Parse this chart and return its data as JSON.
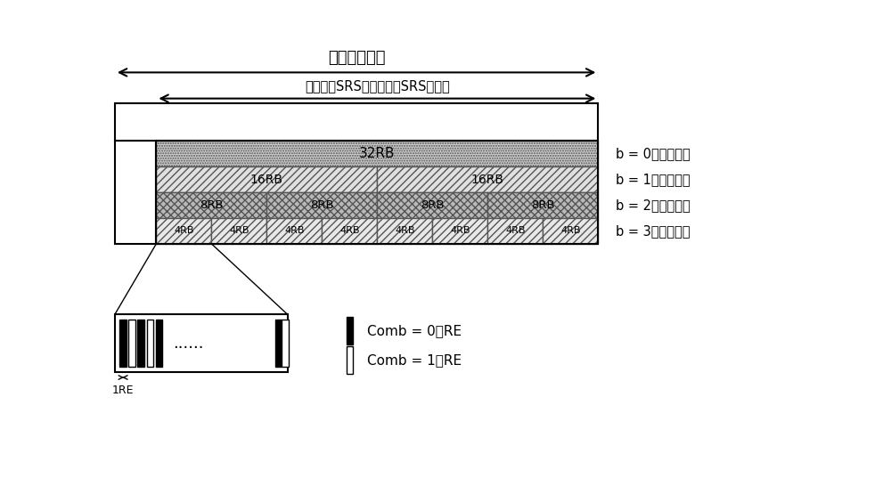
{
  "title_system_bw": "上行系统带宽",
  "title_srs_bw": "第一层的SRS带宽（最大SRS带宽）",
  "labels_right": [
    "b = 0（第一层）",
    "b = 1（第二层）",
    "b = 2（第三层）",
    "b = 3（第四层）"
  ],
  "legend_comb0": "Comb = 0的RE",
  "legend_comb1": "Comb = 1的RE",
  "legend_1re": "1RE",
  "bg_color": "#ffffff"
}
